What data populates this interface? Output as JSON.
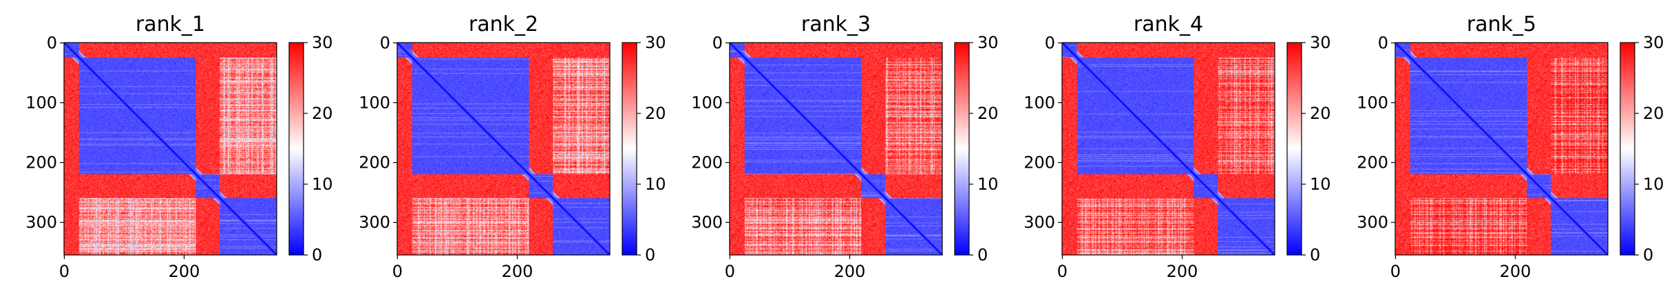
{
  "chart_data": {
    "type": "heatmap",
    "panels": [
      {
        "title": "rank_1",
        "variant": 0
      },
      {
        "title": "rank_2",
        "variant": 1
      },
      {
        "title": "rank_3",
        "variant": 2
      },
      {
        "title": "rank_4",
        "variant": 3
      },
      {
        "title": "rank_5",
        "variant": 4
      }
    ],
    "matrix_size": 355,
    "domains": [
      [
        0,
        25
      ],
      [
        25,
        220
      ],
      [
        220,
        260
      ],
      [
        260,
        355
      ]
    ],
    "within_domain_value": 3,
    "between_domain_value": 30,
    "x_ticks": [
      0,
      200
    ],
    "y_ticks": [
      0,
      100,
      200,
      300
    ],
    "colorbar": {
      "ticks": [
        0,
        10,
        20,
        30
      ],
      "min": 0,
      "max": 30,
      "colormap": "bwr",
      "colors": {
        "low": "#0000ff",
        "mid": "#ffffff",
        "high": "#ff0000"
      }
    }
  }
}
